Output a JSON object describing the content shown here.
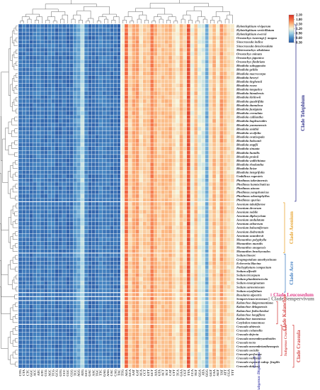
{
  "chart_data": {
    "type": "heatmap",
    "title": "",
    "xlabel": "",
    "ylabel": "",
    "value_range": [
      0.3,
      2.1
    ],
    "colorbar": {
      "ticks": [
        "2.10",
        "1.80",
        "1.50",
        "1.20",
        "0.90",
        "0.60",
        "0.30"
      ],
      "tick_values": [
        2.1,
        1.8,
        1.5,
        1.2,
        0.9,
        0.6,
        0.3
      ],
      "colors": [
        "#2b5aa6",
        "#4a8cc6",
        "#9ccfe6",
        "#f6f6dc",
        "#fcb982",
        "#f46d43",
        "#d62f26"
      ],
      "placement": "top-right"
    },
    "codons": [
      "CTG",
      "CTA",
      "CTC",
      "GGC",
      "ACC",
      "ATC",
      "GTC",
      "CCG",
      "AGC",
      "TCG",
      "GCG",
      "GTG",
      "CCC",
      "CGC",
      "CGG",
      "TCC",
      "AGG",
      "ATG",
      "GCC",
      "GAC",
      "AAC",
      "TGC",
      "TTC",
      "GAG",
      "AAG",
      "CAC",
      "CAG",
      "TAC",
      "TTG",
      "AGA",
      "GCA",
      "AAT",
      "GAT",
      "ACA",
      "CCT",
      "GTT",
      "GCT",
      "AAA",
      "GTA",
      "ACT",
      "TCT",
      "CAT",
      "CTT",
      "TCA",
      "GAA",
      "CGT",
      "TTA",
      "CCA",
      "TGT",
      "GGA",
      "ATA",
      "GGG",
      "GGT",
      "CAA",
      "AGT",
      "TAT",
      "ATT",
      "CGA",
      "TTT"
    ],
    "species": [
      "Hylotelephium viviparum",
      "Hylotelephium verticillatum",
      "Hylotelephium ewersii",
      "Orostachys iwarengi f. magna",
      "Sinocrassula indica",
      "Sinocrassula densirosulata",
      "Meterostachys sikokiana",
      "Orostachys minuta",
      "Orostachys japonica",
      "Orostachys fimbriata",
      "Rhodiola subopposita",
      "Rhodiola gelida",
      "Rhodiola macrocarpa",
      "Rhodiola henryi",
      "Rhodiola tieghemii",
      "Rhodiola rosea",
      "Rhodiola tangutica",
      "Rhodiola himalensis",
      "Rhodiola kirilowii",
      "Rhodiola quadrifida",
      "Rhodiola dumulosa",
      "Rhodiola fastigiata",
      "Rhodiola crenulata",
      "Rhodiola calliantha",
      "Rhodiola bupleuroides",
      "Rhodiola yunnanensis",
      "Rhodiola smithii",
      "Rhodiola sexifolia",
      "Rhodiola ovatisepala",
      "Rhodiola hobsonii",
      "Rhodiola stapfii",
      "Rhodiola sinuata",
      "Rhodiola humilis",
      "Rhodiola prainii",
      "Rhodiola wallichiana",
      "Rhodiola rhodantha",
      "Rhodiola liciae",
      "Rhodiola integrifolia",
      "Umbilicus rupestris",
      "Phedimus takesimensis",
      "Phedimus kamtschaticus",
      "Phedimus aizoon",
      "Phedimus yangshanicus",
      "Phedimus odontophyllus",
      "Phedimus spurius",
      "Aeonium tabuliforme",
      "Aeonium decorum",
      "Aeonium nobile",
      "Aeonium diplocyclum",
      "Aeonium undulatum",
      "Aeonium arboreum",
      "Aeonium balsamiferum",
      "Aeonium dodrantale",
      "Aeonium saundersii",
      "Monanthes polyphylla",
      "Monanthes muralis",
      "Monanthes anagensis",
      "Monanthes brachycaulos",
      "Sedum linearc",
      "Graptopetalum amethystinum",
      "Echeveria lilacina",
      "Pachyphytum compactum",
      "Sedum alfredii",
      "Sedum tricarpum",
      "Sedum plumbizincicola",
      "Sedum emarginatum",
      "Sedum sarmentosum",
      "Sedum oryzifolium",
      "Rosularia alpestris",
      "Sempervivum tectorum",
      "Kalanchoe daigremontiana",
      "Kalanchoe delagoensis",
      "Kalanchoe fedtschenkoi",
      "Kalanchoe longiflora",
      "Kalanchoe tomentosa",
      "Cotyledon tomentosa",
      "Crassula ahiensis",
      "Crassula columella",
      "Crassula dejecta",
      "Crassula mesembryanthoides",
      "Crassula tecta",
      "Crassula mesembrianthemopsis",
      "Crassula socialis",
      "Crassula perforata",
      "Crassula volkensii",
      "Crassula expansa subsp. fragilis",
      "Crassula dubiosa"
    ],
    "codon_mean_rscu": [
      0.45,
      0.48,
      0.46,
      0.42,
      0.5,
      0.55,
      0.47,
      0.44,
      0.52,
      0.52,
      0.4,
      0.45,
      0.49,
      0.41,
      0.41,
      0.62,
      0.7,
      1.0,
      0.56,
      0.4,
      0.42,
      0.45,
      0.55,
      0.5,
      0.5,
      0.45,
      0.45,
      0.4,
      1.2,
      1.8,
      1.35,
      1.55,
      1.6,
      1.3,
      1.45,
      1.42,
      1.7,
      1.5,
      1.4,
      1.45,
      1.48,
      1.5,
      1.35,
      1.25,
      1.5,
      1.3,
      1.9,
      1.2,
      1.5,
      1.15,
      1.1,
      0.75,
      1.3,
      1.5,
      1.25,
      1.6,
      1.45,
      1.32,
      1.28
    ],
    "clades": [
      {
        "name": "Clade Telephium",
        "color": "#36378e"
      },
      {
        "name": "Clade Aeonium",
        "color": "#e8a838"
      },
      {
        "name": "Clade Acre",
        "color": "#4a84c4"
      },
      {
        "name": "Clade Leucosedum",
        "color": "#e0408a"
      },
      {
        "name": "Clade Sempervivum",
        "color": "#7a7a7a"
      },
      {
        "name": "Clade Kalanchoe",
        "color": "#d64a4a"
      },
      {
        "name": "Clade Crassula",
        "color": "#d64a4a"
      },
      {
        "name": "Subgenus Crassula",
        "color": "#d64a4a"
      },
      {
        "name": "Subgenus Disporocarpa",
        "color": "#4a4ab0"
      }
    ]
  }
}
